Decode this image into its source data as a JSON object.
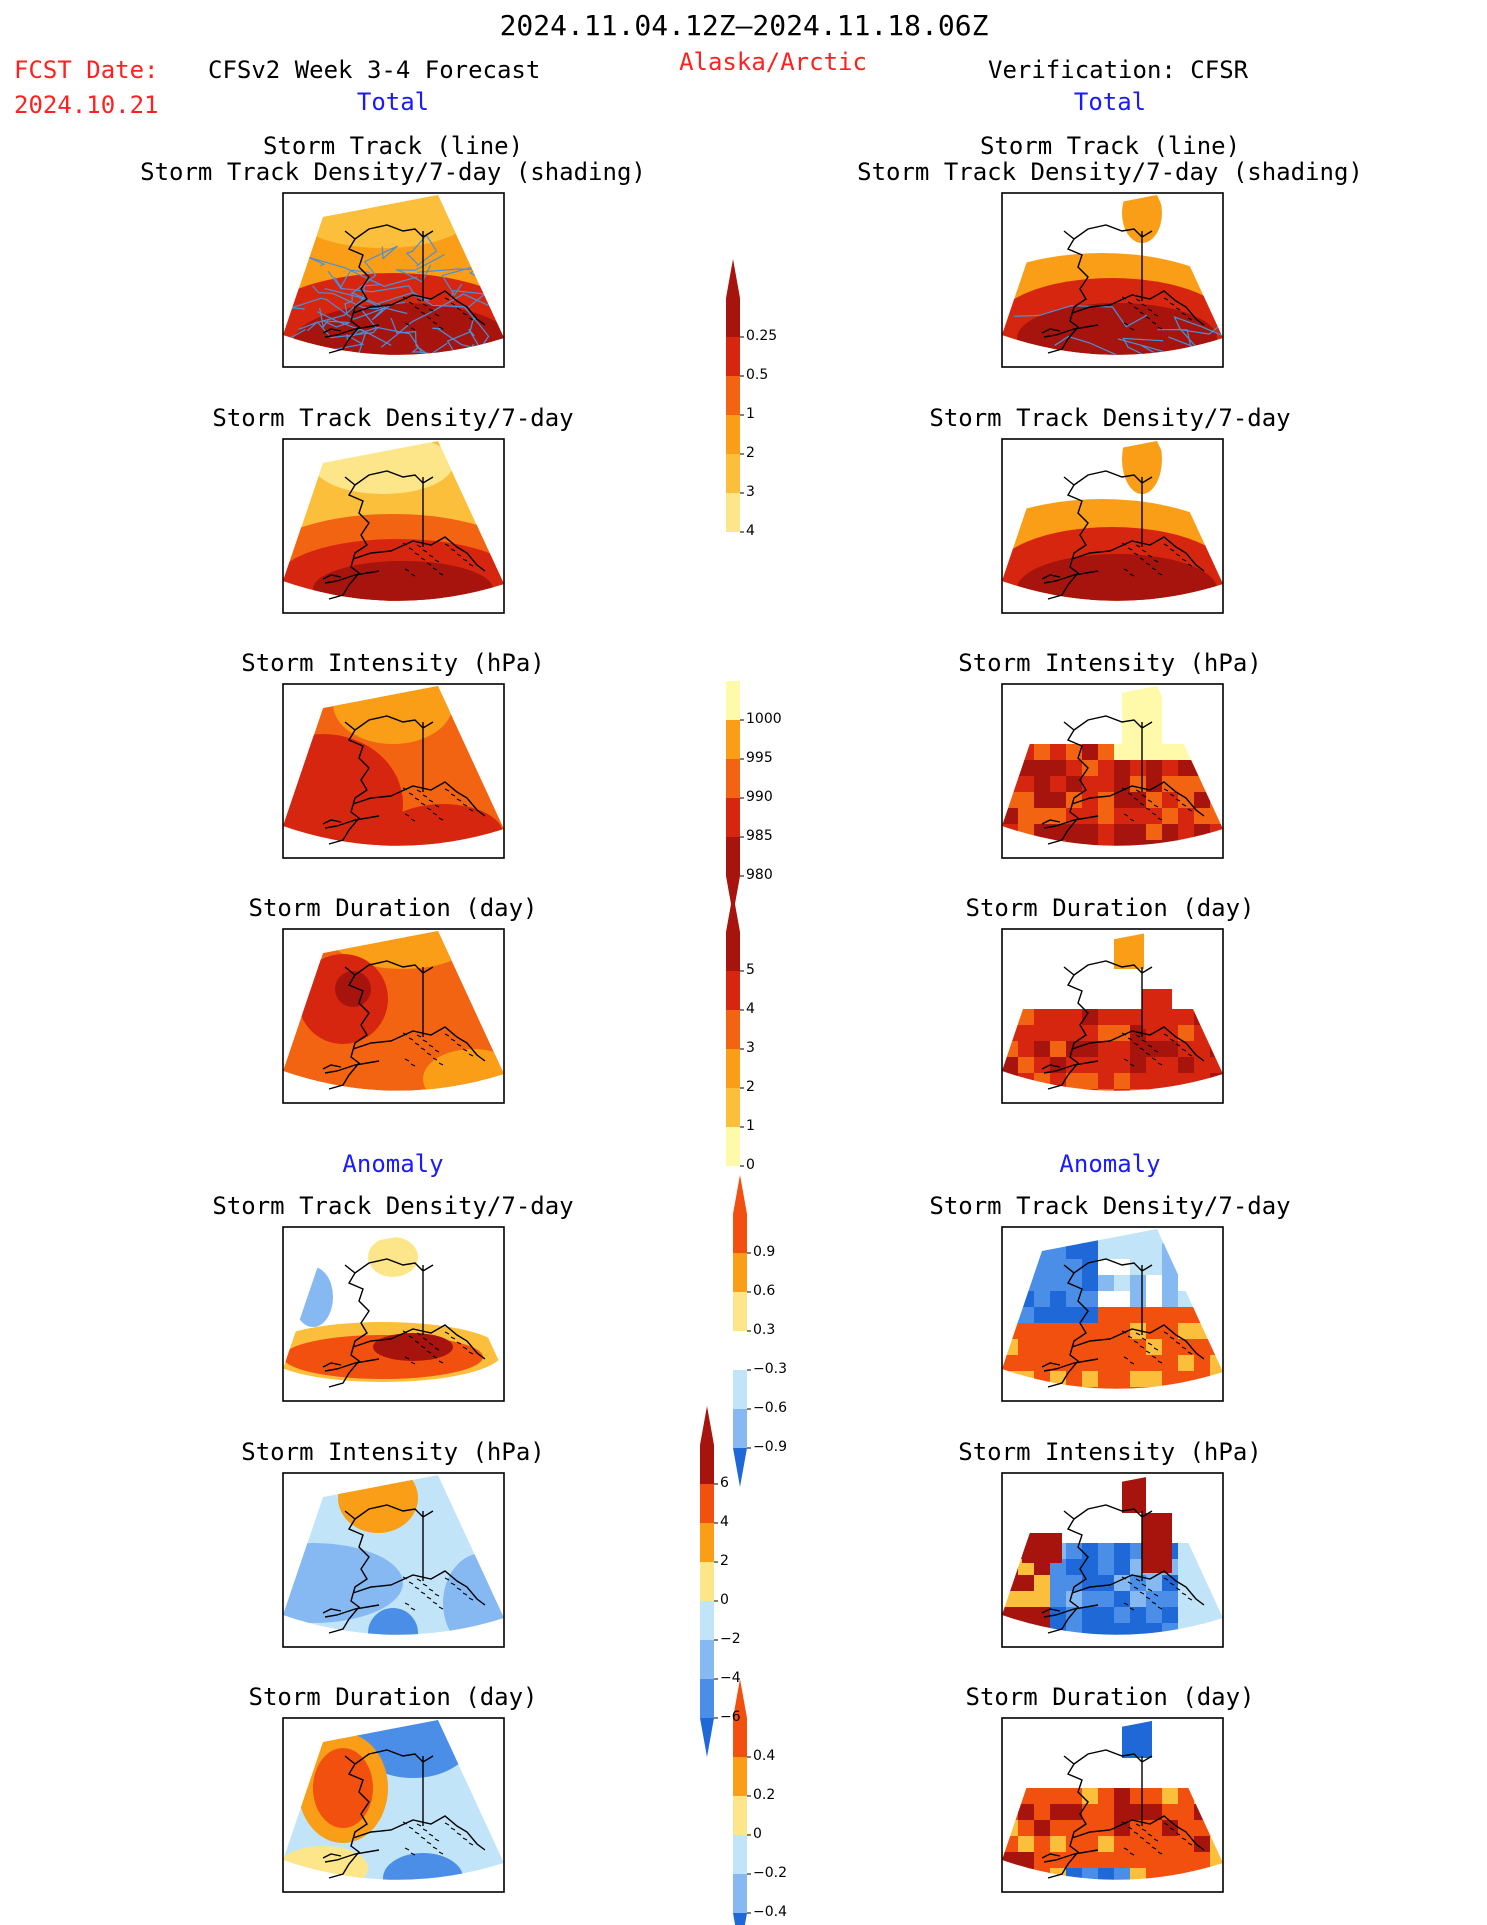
{
  "header": {
    "date_range": "2024.11.04.12Z–2024.11.18.06Z",
    "fcst_label": "FCST Date:",
    "fcst_date": "2024.10.21",
    "model_title": "CFSv2 Week 3-4 Forecast",
    "region": "Alaska/Arctic",
    "verification_title": "Verification: CFSR",
    "left_total": "Total",
    "right_total": "Total",
    "left_anomaly": "Anomaly",
    "right_anomaly": "Anomaly"
  },
  "panel_titles": {
    "storm_track_line": "Storm Track (line)",
    "storm_track_shading": "Storm Track Density/7-day (shading)",
    "track_density": "Storm Track Density/7-day",
    "intensity": "Storm Intensity (hPa)",
    "duration": "Storm Duration (day)"
  },
  "colors": {
    "title_red": "#ff2020",
    "title_blue": "#1a1aff",
    "warm_scale": [
      "#fffaaa",
      "#fde68a",
      "#fbbf3c",
      "#f99e16",
      "#f26411",
      "#d7260f",
      "#a6140d"
    ],
    "anom_scale": [
      "#1e68d8",
      "#4a8ee8",
      "#86b9f2",
      "#c1e4f8",
      "#ffffff",
      "#fde68a",
      "#fbbf3c",
      "#f99e16",
      "#f2500f",
      "#a6140d"
    ]
  },
  "chart_data": [
    {
      "type": "heatmap",
      "name": "colorbar-track-density",
      "levels": [
        "0.25",
        "0.5",
        "1",
        "2",
        "3",
        "4"
      ]
    },
    {
      "type": "heatmap",
      "name": "colorbar-intensity",
      "levels": [
        "1000",
        "995",
        "990",
        "985",
        "980"
      ]
    },
    {
      "type": "heatmap",
      "name": "colorbar-duration",
      "levels": [
        "5",
        "4",
        "3",
        "2",
        "1",
        "0"
      ]
    },
    {
      "type": "heatmap",
      "name": "colorbar-density-anomaly",
      "levels": [
        "0.9",
        "0.6",
        "0.3",
        "−0.3",
        "−0.6",
        "−0.9"
      ]
    },
    {
      "type": "heatmap",
      "name": "colorbar-intensity-anomaly",
      "levels": [
        "6",
        "4",
        "2",
        "0",
        "−2",
        "−4",
        "−6"
      ]
    },
    {
      "type": "heatmap",
      "name": "colorbar-duration-anomaly",
      "levels": [
        "0.4",
        "0.2",
        "0",
        "−0.2",
        "−0.4"
      ]
    }
  ]
}
